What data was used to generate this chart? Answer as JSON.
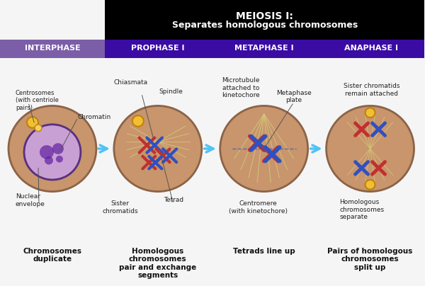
{
  "title_main": "MEIOSIS I:",
  "title_sub": "Separates homologous chromosomes",
  "header_bg": "#000000",
  "header_text_color": "#ffffff",
  "phase_bg": "#3a0ca3",
  "interphase_bg": "#7b5ea7",
  "phase_text_color": "#ffffff",
  "phases": [
    "INTERPHASE",
    "PROPHASE I",
    "METAPHASE I",
    "ANAPHASE I"
  ],
  "cell_color": "#c8956c",
  "cell_edge_color": "#8b6347",
  "arrow_color": "#4fc3f7",
  "main_bg": "#f5f5f5",
  "bottom_texts": [
    "Chromosomes\nduplicate",
    "Homologous\nchromosomes\npair and exchange\nsegments",
    "Tetrads line up",
    "Pairs of homologous\nchromosomes\nsplit up"
  ],
  "top_labels_phase1": [
    "Centrosomes\n(with centriole\npairs)",
    "Chromatin"
  ],
  "top_labels_phase2": [
    "Chiasmata",
    "Spindle"
  ],
  "top_labels_phase3": [
    "Microtubule\nattached to\nkinetochore",
    "Metaphase\nplate"
  ],
  "top_labels_phase4": [
    "Sister chromatids\nremain attached"
  ],
  "bottom_labels_phase1": [
    "Nuclear\nenvelope"
  ],
  "bottom_labels_phase2": [
    "Sister\nchromatids",
    "Tetrad"
  ],
  "bottom_labels_phase3": [
    "Centromere\n(with kinetochore)"
  ],
  "bottom_labels_phase4": [
    "Homologous\nchromosomes\nseparate"
  ]
}
